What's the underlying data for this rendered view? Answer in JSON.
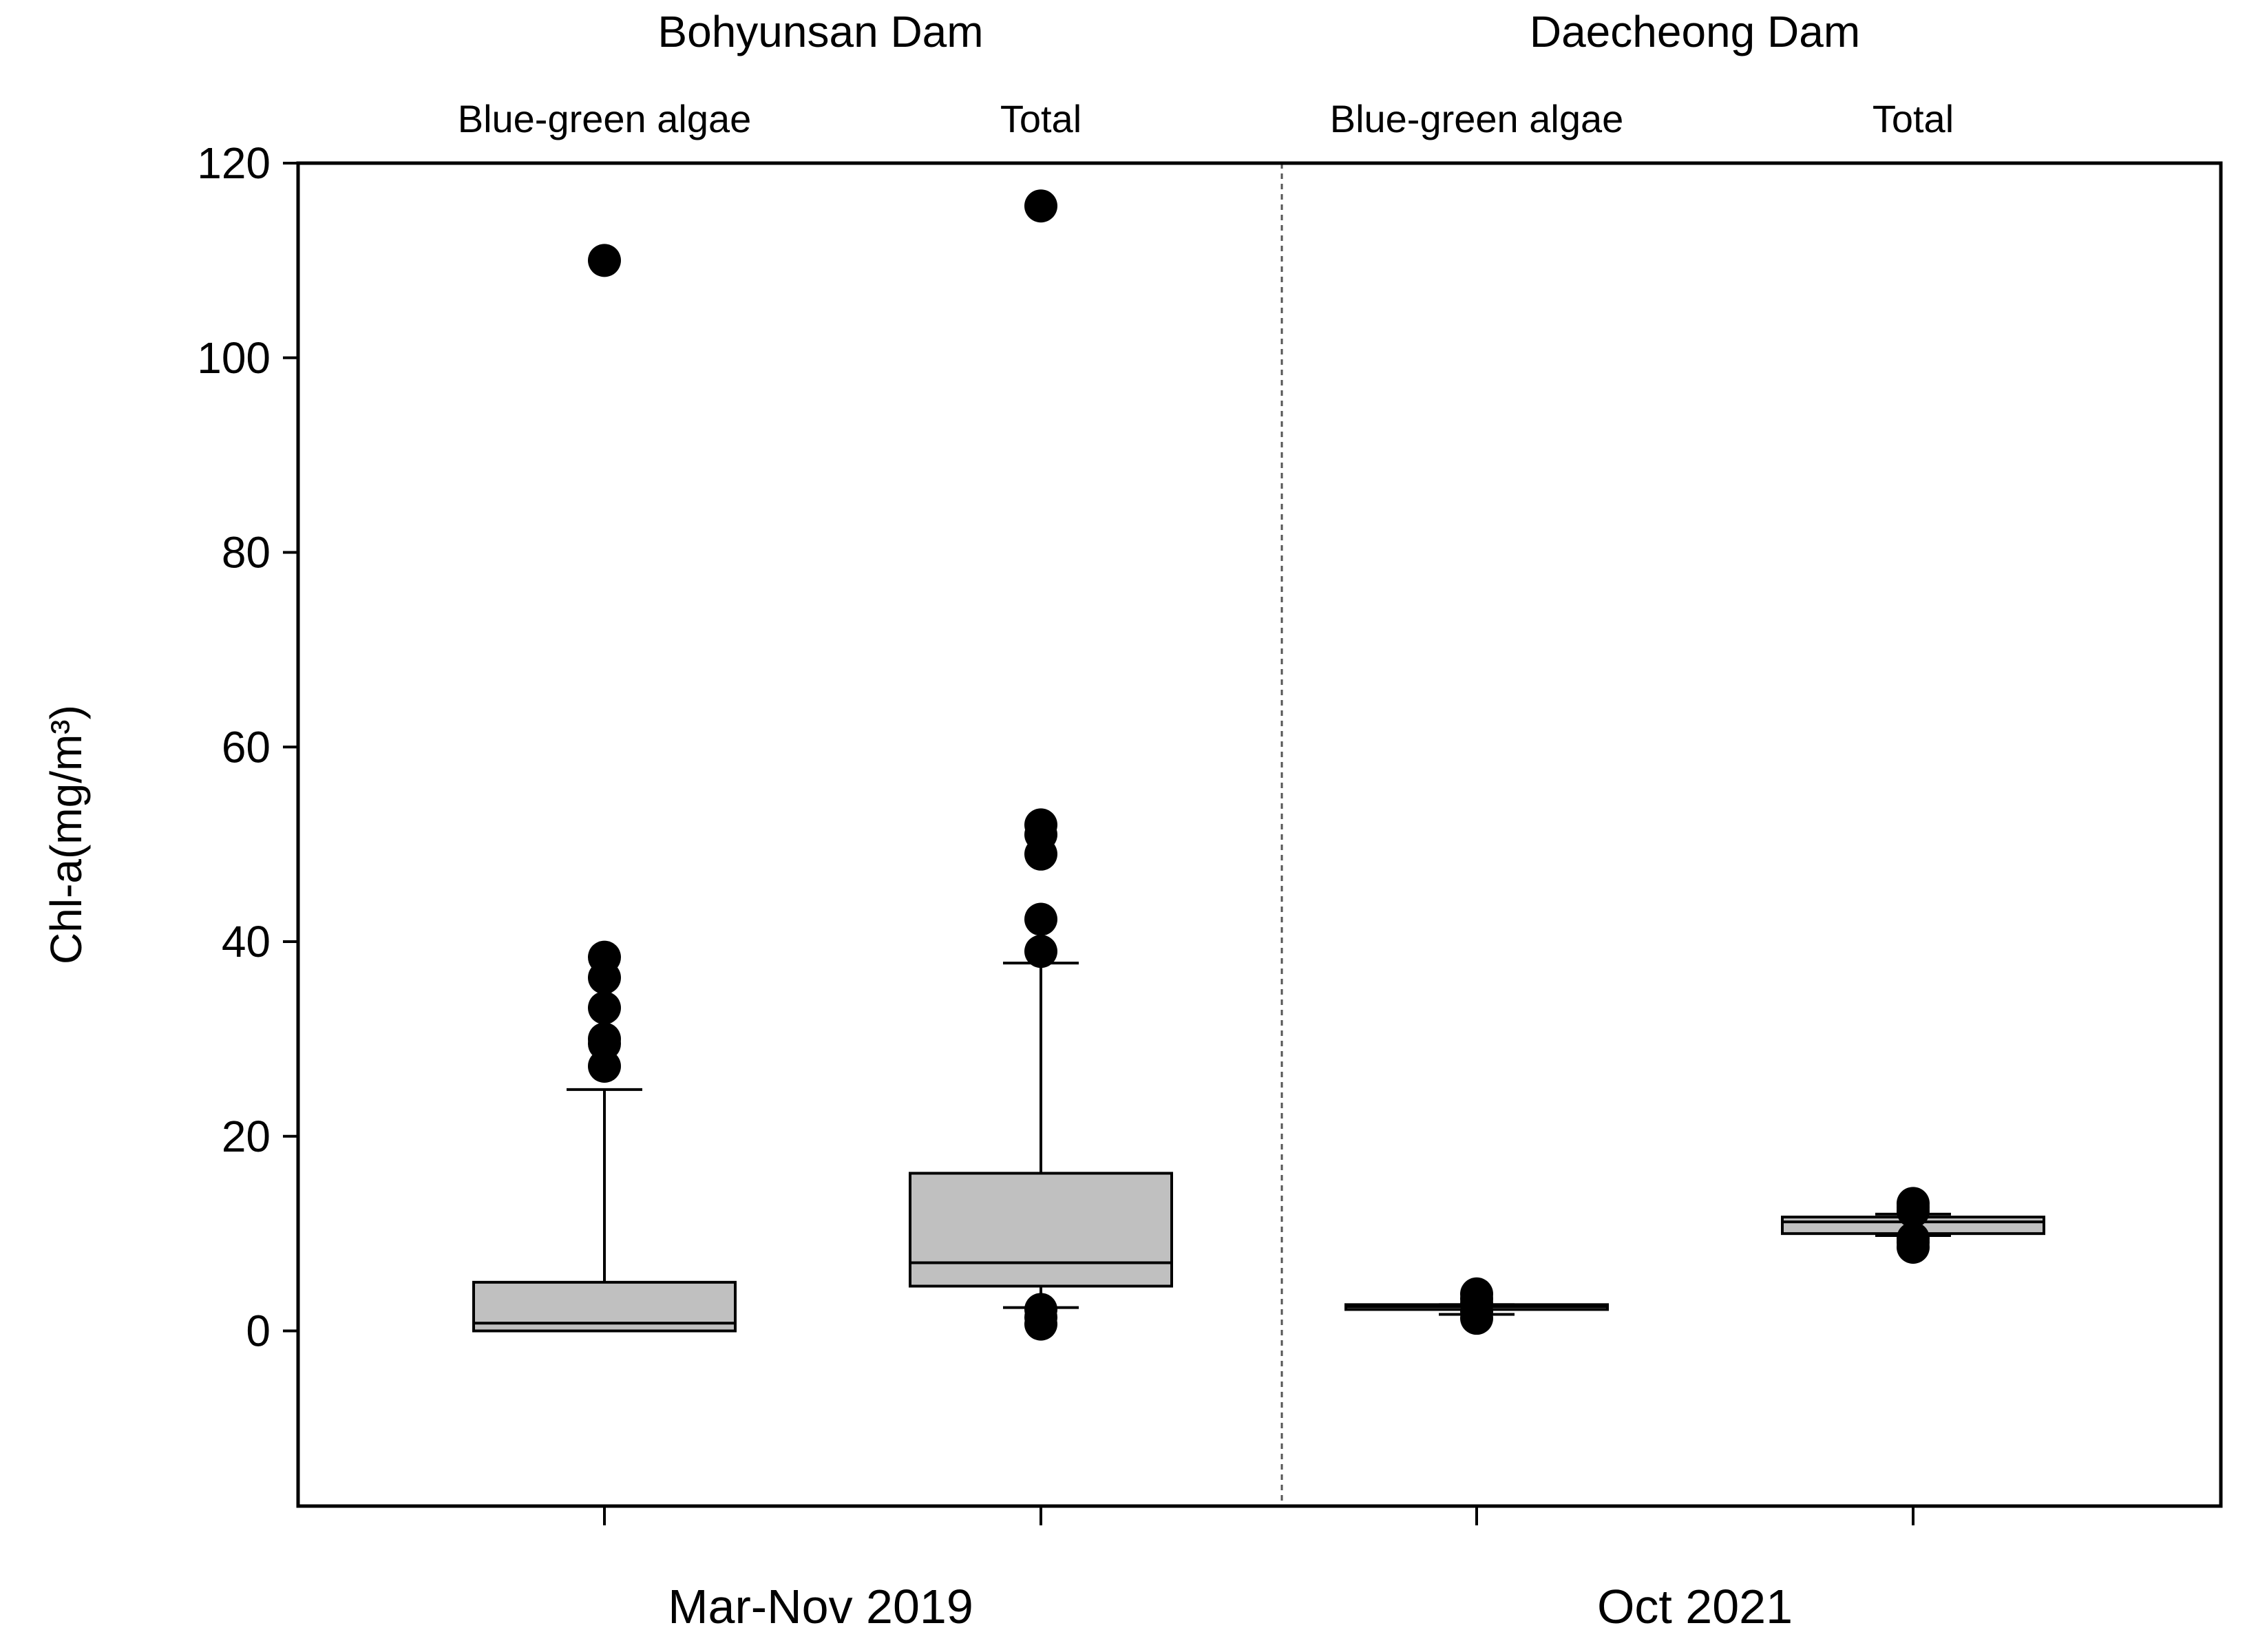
{
  "chart_data": {
    "type": "boxplot",
    "ylabel": "Chl-a(mg/m³)",
    "ylim": [
      -18,
      120
    ],
    "yticks": [
      0,
      20,
      40,
      60,
      80,
      100,
      120
    ],
    "grid": false,
    "groups": [
      {
        "name": "Bohyunsan Dam",
        "period": "Mar-Nov 2019"
      },
      {
        "name": "Daecheong Dam",
        "period": "Oct 2021"
      }
    ],
    "series": [
      {
        "name": "Blue-green algae",
        "group": "Bohyunsan Dam",
        "whisker_low": 0,
        "q1": 0,
        "median": 0.8,
        "q3": 5,
        "whisker_high": 24.8,
        "outliers": [
          27.2,
          29.5,
          30,
          33.2,
          36.3,
          38.4,
          110
        ]
      },
      {
        "name": "Total",
        "group": "Bohyunsan Dam",
        "whisker_low": 2.4,
        "q1": 4.6,
        "median": 7,
        "q3": 16.2,
        "whisker_high": 37.8,
        "outliers": [
          0.7,
          1.4,
          2.2,
          39,
          42.3,
          49,
          51,
          52,
          115.6
        ]
      },
      {
        "name": "Blue-green algae",
        "group": "Daecheong Dam",
        "whisker_low": 1.7,
        "q1": 2.2,
        "median": 2.5,
        "q3": 2.7,
        "whisker_high": 2.7,
        "outliers": [
          1.3,
          2,
          2.8,
          3.3,
          3.8
        ]
      },
      {
        "name": "Total",
        "group": "Daecheong Dam",
        "whisker_low": 9.8,
        "q1": 10,
        "median": 11.2,
        "q3": 11.7,
        "whisker_high": 12,
        "outliers": [
          8.6,
          9.1,
          9.5,
          12.3,
          12.7,
          13.1
        ]
      }
    ]
  },
  "colors": {
    "box_fill": "#c0c0c0",
    "stroke": "#000000",
    "outlier": "#000000",
    "separator": "#555555"
  }
}
